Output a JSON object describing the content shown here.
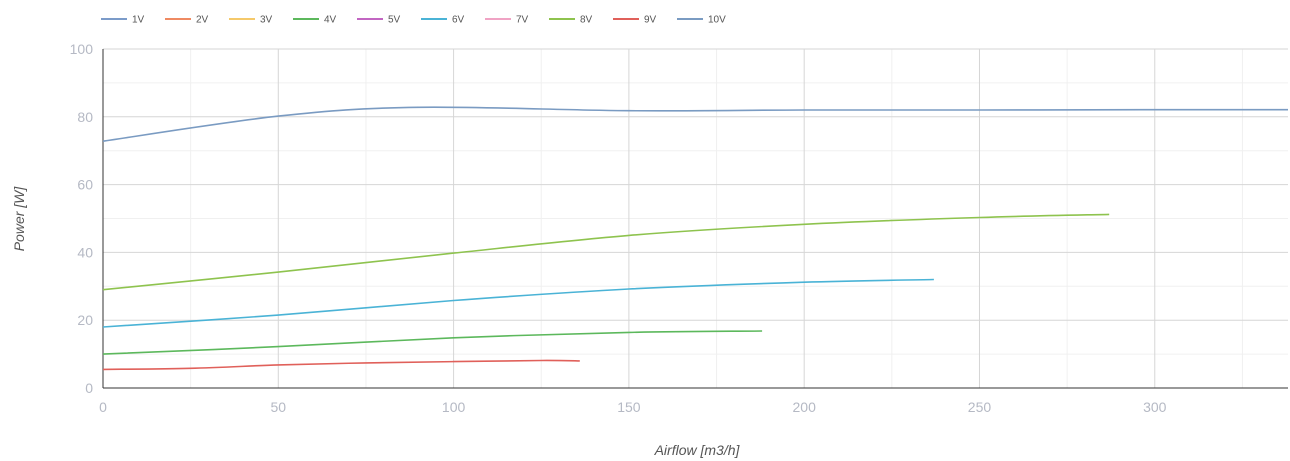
{
  "chart_data": {
    "type": "line",
    "title": "",
    "xlabel": "Airflow [m3/h]",
    "ylabel": "Power [W]",
    "xlim": [
      0,
      338
    ],
    "ylim": [
      0,
      100
    ],
    "x_ticks": [
      0,
      50,
      100,
      150,
      200,
      250,
      300
    ],
    "y_ticks": [
      0,
      20,
      40,
      60,
      80,
      100
    ],
    "grid": true,
    "legend_position": "top-left",
    "series": [
      {
        "name": "1V",
        "color": "#7b9bc9",
        "x": [],
        "y": []
      },
      {
        "name": "2V",
        "color": "#ef8a62",
        "x": [],
        "y": []
      },
      {
        "name": "3V",
        "color": "#f5c96a",
        "x": [],
        "y": []
      },
      {
        "name": "4V",
        "color": "#5cb85c",
        "x": [],
        "y": []
      },
      {
        "name": "5V",
        "color": "#c266c2",
        "x": [],
        "y": []
      },
      {
        "name": "6V",
        "color": "#4ab3d6",
        "x": [],
        "y": []
      },
      {
        "name": "7V",
        "color": "#f0a3c4",
        "x": [],
        "y": []
      },
      {
        "name": "8V",
        "color": "#8ec34e",
        "x": [
          0,
          50,
          100,
          150,
          200,
          250,
          287
        ],
        "y": [
          29,
          34.2,
          39.8,
          45,
          48.3,
          50.3,
          51.2
        ]
      },
      {
        "name": "9V",
        "color": "#e0605a",
        "x": [
          0,
          25,
          50,
          75,
          100,
          125,
          136
        ],
        "y": [
          5.5,
          5.8,
          6.8,
          7.4,
          7.8,
          8.1,
          8.0
        ]
      },
      {
        "name": "10V",
        "color": "#7a9bc2",
        "x": [
          0,
          50,
          90,
          150,
          200,
          250,
          300,
          338
        ],
        "y": [
          72.8,
          80.2,
          82.8,
          81.8,
          82,
          82,
          82.1,
          82.1
        ]
      }
    ],
    "extra_lines": [
      {
        "color": "#4ab3d6",
        "x": [
          0,
          50,
          100,
          150,
          200,
          237
        ],
        "y": [
          18,
          21.5,
          25.8,
          29.2,
          31.2,
          32
        ]
      },
      {
        "color": "#5cb85c",
        "x": [
          0,
          50,
          100,
          150,
          188
        ],
        "y": [
          10,
          12.2,
          14.8,
          16.4,
          16.8
        ]
      }
    ]
  }
}
